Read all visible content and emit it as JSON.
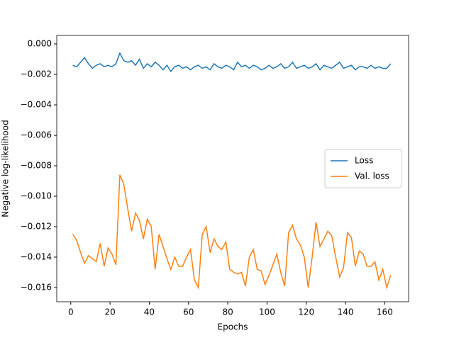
{
  "chart_data": {
    "type": "line",
    "x_label": "Epochs",
    "y_label": "Negative log-likelihood",
    "x": [
      1,
      3,
      5,
      7,
      9,
      11,
      13,
      15,
      17,
      19,
      21,
      23,
      25,
      27,
      29,
      31,
      33,
      35,
      37,
      39,
      41,
      43,
      45,
      47,
      49,
      51,
      53,
      55,
      57,
      59,
      61,
      63,
      65,
      67,
      69,
      71,
      73,
      75,
      77,
      79,
      81,
      83,
      85,
      87,
      89,
      91,
      93,
      95,
      97,
      99,
      101,
      103,
      105,
      107,
      109,
      111,
      113,
      115,
      117,
      119,
      121,
      123,
      125,
      127,
      129,
      131,
      133,
      135,
      137,
      139,
      141,
      143,
      145,
      147,
      149,
      151,
      153,
      155,
      157,
      159,
      161,
      163
    ],
    "series": [
      {
        "name": "Loss",
        "color": "#1f77b4",
        "values": [
          -0.0014,
          -0.0015,
          -0.0012,
          -0.0009,
          -0.0013,
          -0.0016,
          -0.0014,
          -0.0013,
          -0.0015,
          -0.0014,
          -0.0015,
          -0.0013,
          -0.0006,
          -0.0011,
          -0.0012,
          -0.0011,
          -0.0014,
          -0.001,
          -0.0016,
          -0.0013,
          -0.0015,
          -0.0012,
          -0.0014,
          -0.0017,
          -0.0014,
          -0.0018,
          -0.0015,
          -0.0014,
          -0.0016,
          -0.0015,
          -0.0017,
          -0.0015,
          -0.0014,
          -0.0016,
          -0.0015,
          -0.0017,
          -0.0013,
          -0.0015,
          -0.0016,
          -0.0014,
          -0.0015,
          -0.0017,
          -0.0012,
          -0.0015,
          -0.0014,
          -0.0016,
          -0.0014,
          -0.0015,
          -0.0017,
          -0.0016,
          -0.0014,
          -0.0016,
          -0.0015,
          -0.0013,
          -0.0016,
          -0.0015,
          -0.0012,
          -0.0016,
          -0.0015,
          -0.0014,
          -0.0016,
          -0.0015,
          -0.0013,
          -0.0017,
          -0.0014,
          -0.0015,
          -0.0016,
          -0.0014,
          -0.0012,
          -0.0016,
          -0.0015,
          -0.0014,
          -0.0017,
          -0.0015,
          -0.0015,
          -0.0016,
          -0.0014,
          -0.0016,
          -0.0015,
          -0.0016,
          -0.0016,
          -0.0013
        ]
      },
      {
        "name": "Val. loss",
        "color": "#ff7f0e",
        "values": [
          -0.0125,
          -0.0129,
          -0.0137,
          -0.0144,
          -0.0139,
          -0.0141,
          -0.0143,
          -0.0131,
          -0.0146,
          -0.0134,
          -0.0138,
          -0.0145,
          -0.0086,
          -0.0092,
          -0.0108,
          -0.0123,
          -0.0111,
          -0.0116,
          -0.0128,
          -0.0115,
          -0.012,
          -0.0148,
          -0.0125,
          -0.0133,
          -0.0141,
          -0.0148,
          -0.014,
          -0.0146,
          -0.0146,
          -0.014,
          -0.0135,
          -0.0155,
          -0.016,
          -0.0125,
          -0.012,
          -0.0137,
          -0.0128,
          -0.0133,
          -0.0135,
          -0.013,
          -0.0148,
          -0.015,
          -0.0151,
          -0.015,
          -0.0159,
          -0.014,
          -0.0135,
          -0.0148,
          -0.0149,
          -0.0158,
          -0.0152,
          -0.0145,
          -0.0138,
          -0.015,
          -0.0159,
          -0.0124,
          -0.0119,
          -0.0128,
          -0.0132,
          -0.014,
          -0.016,
          -0.014,
          -0.0117,
          -0.0133,
          -0.0128,
          -0.0123,
          -0.0126,
          -0.014,
          -0.0153,
          -0.0147,
          -0.0124,
          -0.0127,
          -0.0146,
          -0.0136,
          -0.0138,
          -0.0146,
          -0.0146,
          -0.0143,
          -0.0155,
          -0.0148,
          -0.016,
          -0.0152
        ]
      }
    ],
    "xlim": [
      -7.15,
      172.15
    ],
    "xticks": [
      0,
      20,
      40,
      60,
      80,
      100,
      120,
      140,
      160
    ],
    "ylim": [
      -0.01693,
      0.00056
    ],
    "yticks": [
      {
        "value": 0,
        "label": "0.000"
      },
      {
        "value": -0.002,
        "label": "−0.002"
      },
      {
        "value": -0.004,
        "label": "−0.004"
      },
      {
        "value": -0.006,
        "label": "−0.006"
      },
      {
        "value": -0.008,
        "label": "−0.008"
      },
      {
        "value": -0.01,
        "label": "−0.010"
      },
      {
        "value": -0.012,
        "label": "−0.012"
      },
      {
        "value": -0.014,
        "label": "−0.014"
      },
      {
        "value": -0.016,
        "label": "−0.016"
      }
    ],
    "legend": "center right",
    "grid": false
  }
}
